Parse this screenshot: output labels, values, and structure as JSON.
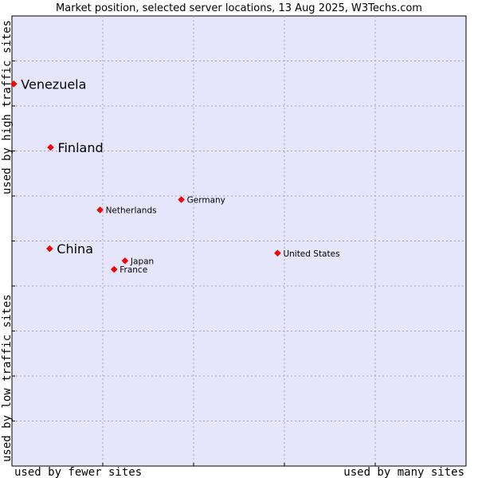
{
  "chart_data": {
    "type": "scatter",
    "title": "Market position, selected server locations, 13 Aug 2025, W3Techs.com",
    "xlabel_left": "used by fewer sites",
    "xlabel_right": "used by many sites",
    "ylabel_top": "used by high traffic sites",
    "ylabel_bottom": "used by low traffic sites",
    "xlim": [
      0,
      100
    ],
    "ylim": [
      0,
      100
    ],
    "grid": true,
    "colors": {
      "plot_background": "#e6e6fa",
      "grid": "#a0a0c8",
      "point": "#ff0000",
      "text": "#000000"
    },
    "points": [
      {
        "name": "Venezuela",
        "x": 0.4,
        "y": 84.9,
        "emphasis": true
      },
      {
        "name": "Finland",
        "x": 8.5,
        "y": 70.8,
        "emphasis": true
      },
      {
        "name": "China",
        "x": 8.3,
        "y": 48.3,
        "emphasis": true
      },
      {
        "name": "Germany",
        "x": 37.3,
        "y": 59.2,
        "emphasis": false
      },
      {
        "name": "Netherlands",
        "x": 19.4,
        "y": 56.9,
        "emphasis": false
      },
      {
        "name": "United States",
        "x": 58.5,
        "y": 47.3,
        "emphasis": false
      },
      {
        "name": "Japan",
        "x": 24.9,
        "y": 45.6,
        "emphasis": false
      },
      {
        "name": "France",
        "x": 22.5,
        "y": 43.7,
        "emphasis": false
      }
    ]
  }
}
